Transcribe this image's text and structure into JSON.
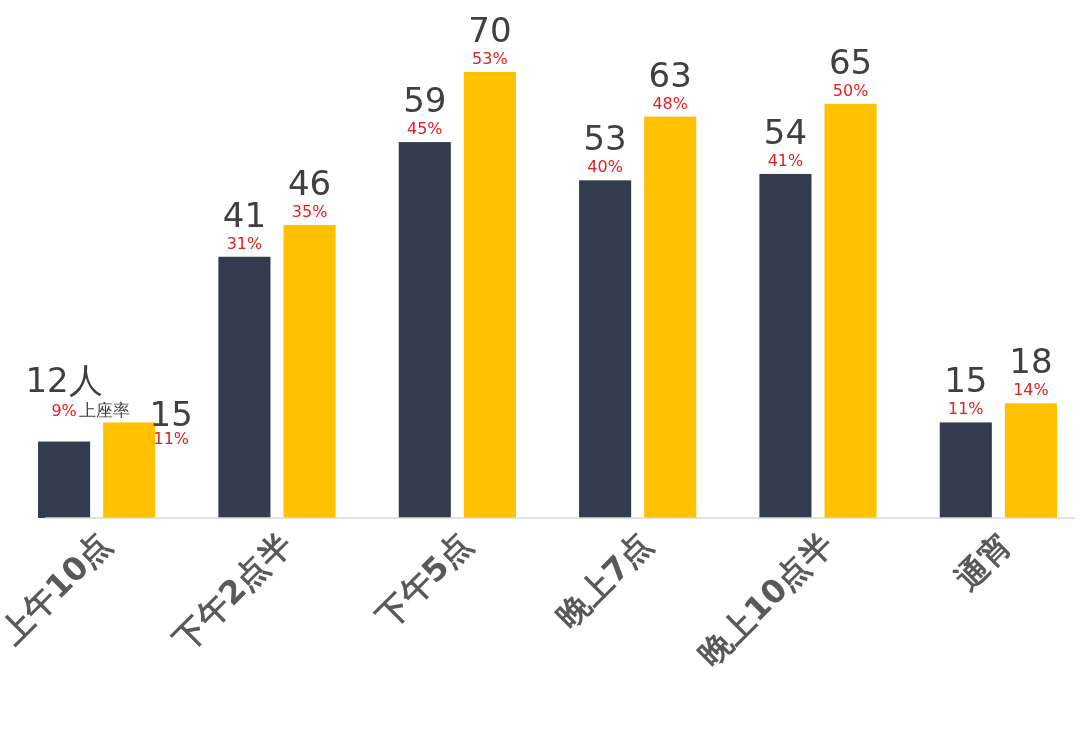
{
  "chart_data": {
    "type": "bar",
    "categories": [
      "上午10点",
      "下午2点半",
      "下午5点",
      "晚上7点",
      "晚上10点半",
      "通宵"
    ],
    "series": [
      {
        "color": "#323c4e",
        "values": [
          12,
          41,
          59,
          53,
          54,
          15
        ],
        "value_labels": [
          "12人",
          "41",
          "59",
          "53",
          "54",
          "15"
        ]
      },
      {
        "color": "#ffc000",
        "values": [
          15,
          46,
          70,
          63,
          65,
          18
        ],
        "value_labels": [
          "15",
          "46",
          "70",
          "63",
          "65",
          "18"
        ]
      }
    ],
    "annotations": [
      {
        "text": "9%",
        "x": "上午10点",
        "y": 12
      },
      "上座率",
      {
        "text": "31%",
        "x": "下午2点半",
        "y": 41
      },
      {
        "text": "45%",
        "x": "下午5点",
        "y": 59
      },
      {
        "text": "40%",
        "x": "晚上7点",
        "y": 53
      },
      {
        "text": "41%",
        "x": "晚上10点半",
        "y": 54
      },
      {
        "text": "11%",
        "x": "通宵",
        "y": 15
      },
      {
        "text": "11%",
        "x": "上午10点",
        "y": 15
      },
      {
        "text": "35%",
        "x": "下午2点半",
        "y": 46
      },
      {
        "text": "53%",
        "x": "下午5点",
        "y": 70
      },
      {
        "text": "48%",
        "x": "晚上7点",
        "y": 63
      },
      {
        "text": "50%",
        "x": "晚上10点半",
        "y": 65
      },
      {
        "text": "14%",
        "x": "通宵",
        "y": 18
      }
    ]
  }
}
